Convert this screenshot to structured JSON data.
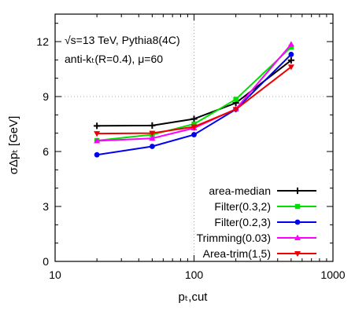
{
  "chart_data": {
    "type": "line",
    "annotations": [
      "√s=13 TeV, Pythia8(4C)",
      "anti-kₜ(R=0.4), μ=60"
    ],
    "xlabel": "pₜ,cut",
    "ylabel": "σΔpₜ [GeV]",
    "x_scale": "log",
    "xlim": [
      10,
      1000
    ],
    "ylim": [
      0,
      13.5
    ],
    "x_ticks": [
      10,
      100,
      1000
    ],
    "x_tick_labels": [
      "10",
      "100",
      "1000"
    ],
    "y_ticks": [
      0,
      3,
      6,
      9,
      12
    ],
    "y_tick_labels": [
      "0",
      "3",
      "6",
      "9",
      "12"
    ],
    "x": [
      20,
      50,
      100,
      200,
      500
    ],
    "legend_position": "bottom-right",
    "grid": "dotted lines at x=100 and y=9",
    "series": [
      {
        "name": "area-median",
        "color": "#000000",
        "marker": "plus",
        "values": [
          7.4,
          7.42,
          7.78,
          8.65,
          10.98
        ]
      },
      {
        "name": "Filter(0.3,2)",
        "color": "#00e000",
        "marker": "square",
        "values": [
          6.6,
          6.92,
          7.5,
          8.85,
          11.7
        ]
      },
      {
        "name": "Filter(0.2,3)",
        "color": "#0000f0",
        "marker": "circle",
        "values": [
          5.82,
          6.28,
          6.92,
          8.3,
          11.3
        ]
      },
      {
        "name": "Trimming(0.03)",
        "color": "#ff00ff",
        "marker": "triangle",
        "values": [
          6.58,
          6.72,
          7.28,
          8.32,
          11.85
        ]
      },
      {
        "name": "Area-trim(1.5)",
        "color": "#ee0000",
        "marker": "triangle-down",
        "values": [
          6.98,
          7.0,
          7.35,
          8.3,
          10.62
        ]
      }
    ]
  }
}
